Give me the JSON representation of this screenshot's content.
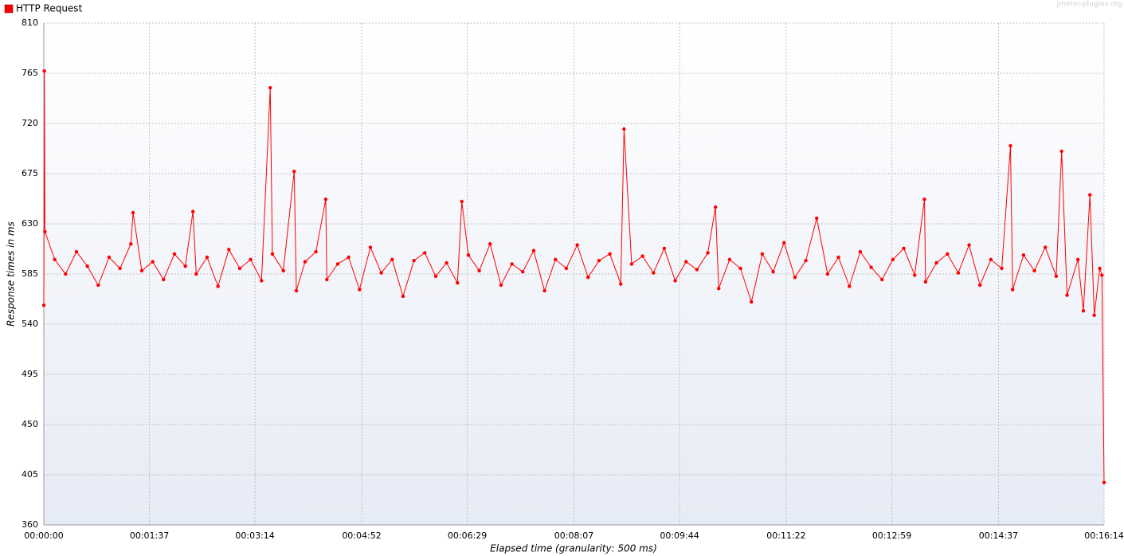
{
  "chart_data": {
    "type": "line",
    "legend": "top-left",
    "watermark": "jmeter-plugins.org",
    "xlabel": "Elapsed time (granularity: 500 ms)",
    "ylabel": "Response times in ms",
    "grid": true,
    "xlim": [
      0,
      974
    ],
    "ylim": [
      360,
      810
    ],
    "xticks": [
      {
        "value": 0,
        "label": "00:00:00"
      },
      {
        "value": 97,
        "label": "00:01:37"
      },
      {
        "value": 194,
        "label": "00:03:14"
      },
      {
        "value": 292,
        "label": "00:04:52"
      },
      {
        "value": 389,
        "label": "00:06:29"
      },
      {
        "value": 487,
        "label": "00:08:07"
      },
      {
        "value": 584,
        "label": "00:09:44"
      },
      {
        "value": 682,
        "label": "00:11:22"
      },
      {
        "value": 779,
        "label": "00:12:59"
      },
      {
        "value": 877,
        "label": "00:14:37"
      },
      {
        "value": 974,
        "label": "00:16:14"
      }
    ],
    "yticks": [
      360,
      405,
      450,
      495,
      540,
      585,
      630,
      675,
      720,
      765,
      810
    ],
    "x": [
      0,
      0.5,
      1,
      10,
      20,
      30,
      40,
      50,
      60,
      70,
      80,
      82,
      90,
      100,
      110,
      120,
      130,
      137,
      140,
      150,
      160,
      170,
      180,
      190,
      200,
      208,
      210,
      220,
      230,
      232,
      240,
      250,
      259,
      260,
      270,
      280,
      290,
      300,
      310,
      320,
      330,
      340,
      350,
      360,
      370,
      380,
      384,
      390,
      400,
      410,
      420,
      430,
      440,
      450,
      460,
      470,
      480,
      490,
      500,
      510,
      520,
      530,
      533,
      540,
      550,
      560,
      570,
      580,
      590,
      600,
      610,
      617,
      620,
      630,
      640,
      650,
      660,
      670,
      680,
      690,
      700,
      710,
      720,
      730,
      740,
      750,
      760,
      770,
      780,
      790,
      800,
      809,
      810,
      820,
      830,
      840,
      850,
      860,
      870,
      880,
      888,
      890,
      900,
      910,
      920,
      930,
      935,
      940,
      950,
      955,
      961,
      965,
      970,
      972,
      974
    ],
    "series": [
      {
        "name": "HTTP Request",
        "color": "#ff0000",
        "values": [
          557,
          767,
          623,
          598,
          585,
          605,
          592,
          575,
          600,
          590,
          612,
          640,
          588,
          596,
          580,
          603,
          592,
          641,
          585,
          600,
          574,
          607,
          590,
          598,
          579,
          752,
          603,
          588,
          677,
          570,
          596,
          605,
          652,
          580,
          594,
          600,
          571,
          609,
          586,
          598,
          565,
          597,
          604,
          583,
          595,
          577,
          650,
          602,
          588,
          612,
          575,
          594,
          587,
          606,
          570,
          598,
          590,
          611,
          582,
          597,
          603,
          576,
          715,
          594,
          601,
          586,
          608,
          579,
          596,
          589,
          604,
          645,
          572,
          598,
          590,
          560,
          603,
          587,
          613,
          582,
          597,
          635,
          585,
          600,
          574,
          605,
          591,
          580,
          598,
          608,
          584,
          652,
          578,
          595,
          603,
          586,
          611,
          575,
          598,
          590,
          700,
          571,
          602,
          588,
          609,
          583,
          695,
          566,
          598,
          552,
          656,
          548,
          590,
          584,
          398
        ]
      }
    ]
  }
}
